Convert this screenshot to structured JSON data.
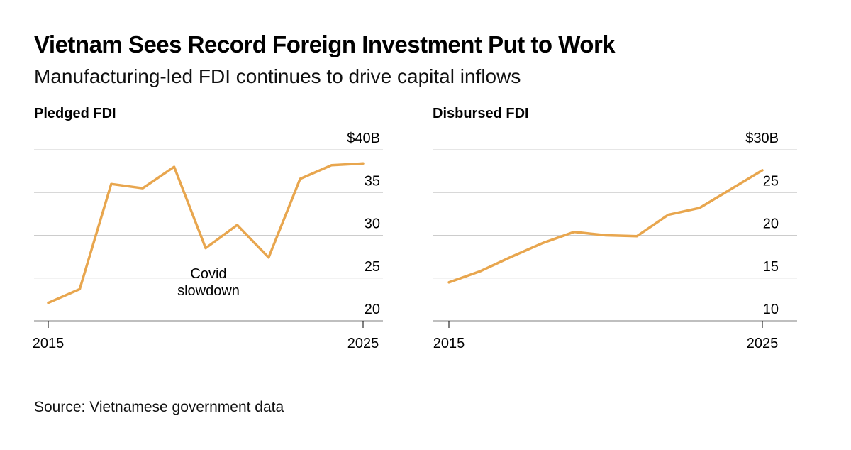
{
  "header": {
    "title": "Vietnam Sees Record Foreign Investment Put to Work",
    "subtitle": "Manufacturing-led FDI continues to drive capital inflows"
  },
  "footer": {
    "source": "Source: Vietnamese government data"
  },
  "colors": {
    "series": "#E8A64E",
    "grid": "#cccccc",
    "baseline": "#999999"
  },
  "chart_data": [
    {
      "type": "line",
      "title": "Pledged FDI",
      "x": [
        2015,
        2016,
        2017,
        2018,
        2019,
        2020,
        2021,
        2022,
        2023,
        2024,
        2025
      ],
      "values": [
        22.1,
        23.7,
        36.0,
        35.5,
        38.0,
        28.5,
        31.2,
        27.4,
        36.6,
        38.2,
        38.4
      ],
      "ylim": [
        20,
        40
      ],
      "yticks": [
        20,
        25,
        30,
        35,
        40
      ],
      "ytick_labels": [
        "20",
        "25",
        "30",
        "35",
        "$40B"
      ],
      "xtick_labels": [
        "2015",
        "2025"
      ],
      "annotation": {
        "lines": [
          "Covid",
          "slowdown"
        ],
        "x": 2020,
        "y": 25.0
      }
    },
    {
      "type": "line",
      "title": "Disbursed FDI",
      "x": [
        2015,
        2016,
        2017,
        2018,
        2019,
        2020,
        2021,
        2022,
        2023,
        2024,
        2025
      ],
      "values": [
        14.5,
        15.8,
        17.5,
        19.1,
        20.4,
        20.0,
        19.9,
        22.4,
        23.2,
        25.4,
        27.6
      ],
      "ylim": [
        10,
        30
      ],
      "yticks": [
        10,
        15,
        20,
        25,
        30
      ],
      "ytick_labels": [
        "10",
        "15",
        "20",
        "25",
        "$30B"
      ],
      "xtick_labels": [
        "2015",
        "2025"
      ]
    }
  ]
}
